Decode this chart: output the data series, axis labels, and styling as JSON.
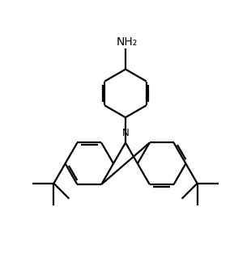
{
  "bg_color": "#ffffff",
  "line_color": "#000000",
  "line_width": 1.6,
  "NH2_label": "NH₂",
  "N_label": "N",
  "figsize": [
    3.1,
    3.24
  ],
  "dpi": 100
}
